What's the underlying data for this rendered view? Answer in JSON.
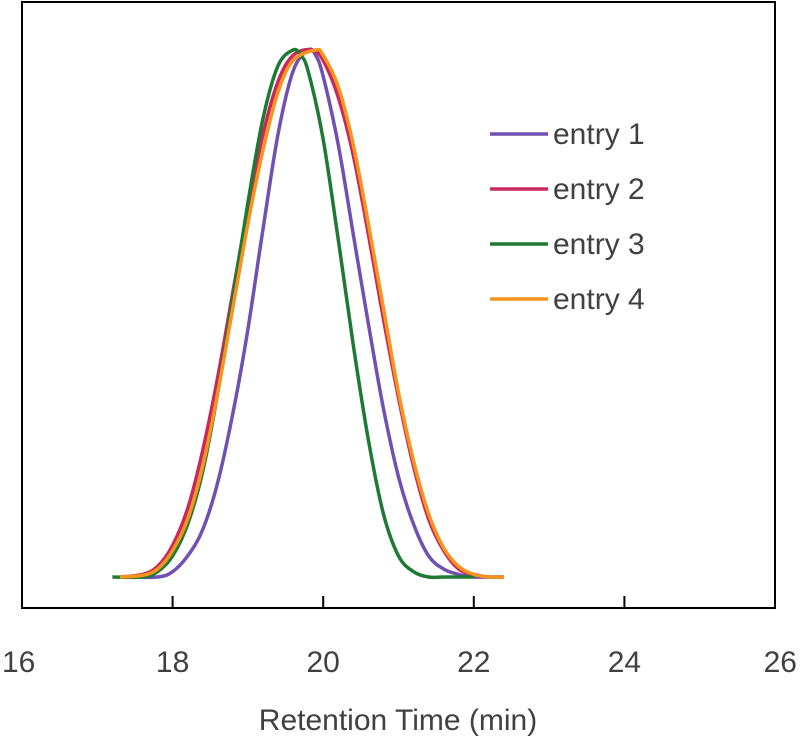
{
  "chart_data": {
    "type": "line",
    "title": "",
    "xlabel": "Retention Time (min)",
    "ylabel": "",
    "xlim": [
      16,
      26
    ],
    "ylim": [
      0,
      1.11
    ],
    "xticks": [
      16,
      18,
      20,
      22,
      24,
      26
    ],
    "xtick_labels": [
      "16",
      "18",
      "20",
      "22",
      "24",
      "26"
    ],
    "yticks_visible": false,
    "grid": false,
    "legend_position": "top-right",
    "series": [
      {
        "name": "entry 1",
        "color": "#7050B0",
        "x": [
          17.4,
          17.8,
          18.0,
          18.2,
          18.4,
          18.6,
          18.8,
          19.0,
          19.2,
          19.4,
          19.6,
          19.8,
          19.9,
          20.0,
          20.2,
          20.4,
          20.6,
          20.8,
          21.0,
          21.2,
          21.4,
          21.6,
          21.8,
          22.0,
          22.4
        ],
        "y": [
          0.0,
          0.0,
          0.01,
          0.04,
          0.09,
          0.18,
          0.31,
          0.47,
          0.66,
          0.84,
          0.96,
          1.0,
          0.99,
          0.95,
          0.82,
          0.65,
          0.48,
          0.32,
          0.19,
          0.1,
          0.04,
          0.015,
          0.005,
          0.0,
          0.0
        ]
      },
      {
        "name": "entry 2",
        "color": "#C8285A",
        "x": [
          17.3,
          17.6,
          17.8,
          18.0,
          18.2,
          18.4,
          18.6,
          18.8,
          19.0,
          19.2,
          19.4,
          19.6,
          19.85,
          20.0,
          20.2,
          20.4,
          20.6,
          20.8,
          21.0,
          21.2,
          21.4,
          21.6,
          21.8,
          22.0,
          22.2,
          22.4
        ],
        "y": [
          0.0,
          0.005,
          0.02,
          0.06,
          0.13,
          0.24,
          0.38,
          0.54,
          0.7,
          0.84,
          0.94,
          0.99,
          1.0,
          0.98,
          0.91,
          0.8,
          0.65,
          0.49,
          0.34,
          0.21,
          0.11,
          0.05,
          0.015,
          0.005,
          0.0,
          0.0
        ]
      },
      {
        "name": "entry 3",
        "color": "#1E7A32",
        "x": [
          17.2,
          17.6,
          17.8,
          18.0,
          18.2,
          18.4,
          18.6,
          18.8,
          19.0,
          19.2,
          19.4,
          19.6,
          19.7,
          19.8,
          20.0,
          20.2,
          20.4,
          20.6,
          20.8,
          21.0,
          21.2,
          21.4,
          21.6,
          22.0
        ],
        "y": [
          0.0,
          0.0,
          0.01,
          0.04,
          0.1,
          0.2,
          0.35,
          0.53,
          0.71,
          0.87,
          0.97,
          1.0,
          0.99,
          0.96,
          0.83,
          0.64,
          0.44,
          0.26,
          0.12,
          0.04,
          0.01,
          0.0,
          0.0,
          0.0
        ]
      },
      {
        "name": "entry 4",
        "color": "#F7941D",
        "x": [
          17.3,
          17.6,
          17.8,
          18.0,
          18.2,
          18.4,
          18.6,
          18.8,
          19.0,
          19.2,
          19.4,
          19.6,
          19.9,
          20.0,
          20.2,
          20.4,
          20.6,
          20.8,
          21.0,
          21.2,
          21.4,
          21.6,
          21.8,
          22.0,
          22.2,
          22.4
        ],
        "y": [
          0.0,
          0.003,
          0.015,
          0.05,
          0.11,
          0.21,
          0.35,
          0.51,
          0.67,
          0.81,
          0.92,
          0.98,
          1.0,
          0.99,
          0.93,
          0.82,
          0.67,
          0.51,
          0.35,
          0.22,
          0.12,
          0.055,
          0.02,
          0.005,
          0.0,
          0.0
        ]
      }
    ]
  }
}
